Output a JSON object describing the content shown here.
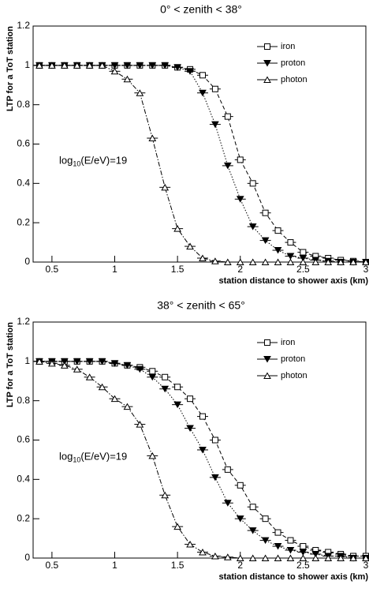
{
  "chart_data": [
    {
      "type": "line",
      "title": "0° < zenith < 38°",
      "x_label": "station distance to shower axis (km)",
      "y_label": "LTP for a ToT station",
      "annotation": [
        "log",
        "10",
        "(E/eV)=19"
      ],
      "xlim": [
        0.35,
        3
      ],
      "ylim": [
        0,
        1.2
      ],
      "xticks": [
        0.5,
        1,
        1.5,
        2,
        2.5,
        3
      ],
      "yticks": [
        0,
        0.2,
        0.4,
        0.6,
        0.8,
        1,
        1.2
      ],
      "legend": "upper right",
      "x": [
        0.4,
        0.5,
        0.6,
        0.7,
        0.8,
        0.9,
        1.0,
        1.1,
        1.2,
        1.3,
        1.4,
        1.5,
        1.6,
        1.7,
        1.8,
        1.9,
        2.0,
        2.1,
        2.2,
        2.3,
        2.4,
        2.5,
        2.6,
        2.7,
        2.8,
        2.9,
        3.0
      ],
      "series": [
        {
          "name": "iron",
          "color": "#000000",
          "marker": "square-open",
          "dash": "5,3",
          "values": [
            1,
            1,
            1,
            1,
            1,
            1,
            1,
            1,
            1,
            1,
            1,
            0.99,
            0.98,
            0.95,
            0.88,
            0.74,
            0.52,
            0.4,
            0.25,
            0.16,
            0.1,
            0.05,
            0.03,
            0.02,
            0.01,
            0.005,
            0
          ]
        },
        {
          "name": "proton",
          "color": "#000000",
          "marker": "triangle-down-filled",
          "dash": "1.5,2",
          "values": [
            1,
            1,
            1,
            1,
            1,
            1,
            1,
            1,
            1,
            1,
            1,
            0.99,
            0.97,
            0.86,
            0.7,
            0.49,
            0.32,
            0.18,
            0.11,
            0.06,
            0.03,
            0.02,
            0.01,
            0.005,
            0,
            0,
            0
          ]
        },
        {
          "name": "photon",
          "color": "#000000",
          "marker": "triangle-up-open",
          "dash": "6,2,1.5,2",
          "values": [
            1,
            1,
            1,
            1,
            1,
            1,
            0.97,
            0.93,
            0.86,
            0.63,
            0.38,
            0.17,
            0.08,
            0.02,
            0.005,
            0,
            0,
            0,
            0,
            0,
            0,
            0,
            0,
            0,
            0,
            0,
            0
          ]
        }
      ]
    },
    {
      "type": "line",
      "title": "38° < zenith < 65°",
      "x_label": "station distance to shower axis (km)",
      "y_label": "LTP for a ToT station",
      "annotation": [
        "log",
        "10",
        "(E/eV)=19"
      ],
      "xlim": [
        0.35,
        3
      ],
      "ylim": [
        0,
        1.2
      ],
      "xticks": [
        0.5,
        1,
        1.5,
        2,
        2.5,
        3
      ],
      "yticks": [
        0,
        0.2,
        0.4,
        0.6,
        0.8,
        1,
        1.2
      ],
      "legend": "upper right",
      "x": [
        0.4,
        0.5,
        0.6,
        0.7,
        0.8,
        0.9,
        1.0,
        1.1,
        1.2,
        1.3,
        1.4,
        1.5,
        1.6,
        1.7,
        1.8,
        1.9,
        2.0,
        2.1,
        2.2,
        2.3,
        2.4,
        2.5,
        2.6,
        2.7,
        2.8,
        2.9,
        3.0
      ],
      "series": [
        {
          "name": "iron",
          "color": "#000000",
          "marker": "square-open",
          "dash": "5,3",
          "values": [
            1,
            1,
            1,
            1,
            1,
            1,
            0.99,
            0.98,
            0.97,
            0.95,
            0.92,
            0.87,
            0.81,
            0.72,
            0.6,
            0.45,
            0.37,
            0.26,
            0.2,
            0.13,
            0.09,
            0.06,
            0.04,
            0.03,
            0.02,
            0.01,
            0.01
          ]
        },
        {
          "name": "proton",
          "color": "#000000",
          "marker": "triangle-down-filled",
          "dash": "1.5,2",
          "values": [
            1,
            1,
            1,
            1,
            1,
            1,
            0.99,
            0.98,
            0.96,
            0.92,
            0.86,
            0.78,
            0.66,
            0.55,
            0.41,
            0.28,
            0.2,
            0.14,
            0.09,
            0.06,
            0.04,
            0.03,
            0.02,
            0.01,
            0.01,
            0,
            0
          ]
        },
        {
          "name": "photon",
          "color": "#000000",
          "marker": "triangle-up-open",
          "dash": "6,2,1.5,2",
          "values": [
            1,
            0.99,
            0.98,
            0.96,
            0.92,
            0.87,
            0.81,
            0.77,
            0.68,
            0.52,
            0.32,
            0.16,
            0.07,
            0.03,
            0.01,
            0.005,
            0,
            0,
            0,
            0,
            0,
            0,
            0,
            0,
            0,
            0,
            0
          ]
        }
      ]
    }
  ]
}
